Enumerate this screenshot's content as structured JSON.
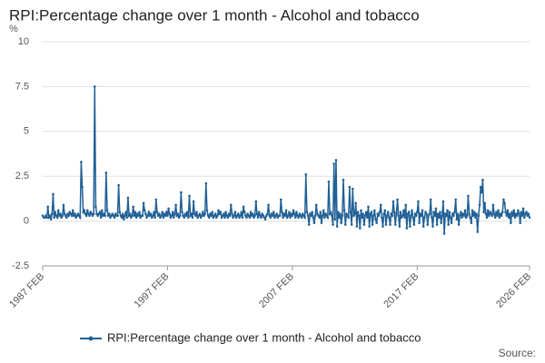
{
  "chart_data": {
    "type": "line",
    "title": "RPI:Percentage change over 1 month - Alcohol and tobacco",
    "y_label": "%",
    "source": "Source:",
    "color": "#206095",
    "grid": true,
    "legend": "bottom",
    "ylim": [
      -2.5,
      10
    ],
    "yticks": [
      -2.5,
      0,
      2.5,
      5,
      7.5,
      10
    ],
    "categories": [
      "1987 FEB",
      null,
      null,
      null,
      null,
      null,
      null,
      null,
      null,
      null,
      null,
      null,
      null,
      null,
      null,
      null,
      null,
      null,
      null,
      null,
      null,
      null,
      null,
      null,
      null,
      null,
      null,
      null,
      null,
      null,
      null,
      null,
      null,
      null,
      null,
      null,
      null,
      null,
      null,
      null,
      null,
      null,
      null,
      null,
      null,
      null,
      null,
      null,
      null,
      null,
      null,
      null,
      null,
      null,
      null,
      null,
      null,
      null,
      null,
      null,
      null,
      null,
      null,
      null,
      null,
      null,
      null,
      null,
      null,
      null,
      null,
      null,
      null,
      null,
      null,
      null,
      null,
      null,
      null,
      null,
      null,
      null,
      null,
      null,
      null,
      null,
      null,
      null,
      null,
      null,
      null,
      null,
      null,
      null,
      null,
      null,
      null,
      null,
      null,
      null,
      null,
      null,
      null,
      null,
      null,
      null,
      null,
      null,
      null,
      null,
      null,
      null,
      null,
      null,
      null,
      null,
      null,
      null,
      null,
      null,
      "1997 FEB",
      null,
      null,
      null,
      null,
      null,
      null,
      null,
      null,
      null,
      null,
      null,
      null,
      null,
      null,
      null,
      null,
      null,
      null,
      null,
      null,
      null,
      null,
      null,
      null,
      null,
      null,
      null,
      null,
      null,
      null,
      null,
      null,
      null,
      null,
      null,
      null,
      null,
      null,
      null,
      null,
      null,
      null,
      null,
      null,
      null,
      null,
      null,
      null,
      null,
      null,
      null,
      null,
      null,
      null,
      null,
      null,
      null,
      null,
      null,
      null,
      null,
      null,
      null,
      null,
      null,
      null,
      null,
      null,
      null,
      null,
      null,
      null,
      null,
      null,
      null,
      null,
      null,
      null,
      null,
      null,
      null,
      null,
      null,
      null,
      null,
      null,
      null,
      null,
      null,
      null,
      null,
      null,
      null,
      null,
      null,
      null,
      null,
      null,
      null,
      null,
      null,
      null,
      null,
      null,
      null,
      null,
      null,
      null,
      null,
      null,
      null,
      null,
      null,
      null,
      null,
      null,
      null,
      null,
      null,
      "2007 FEB",
      null,
      null,
      null,
      null,
      null,
      null,
      null,
      null,
      null,
      null,
      null,
      null,
      null,
      null,
      null,
      null,
      null,
      null,
      null,
      null,
      null,
      null,
      null,
      null,
      null,
      null,
      null,
      null,
      null,
      null,
      null,
      null,
      null,
      null,
      null,
      null,
      null,
      null,
      null,
      null,
      null,
      null,
      null,
      null,
      null,
      null,
      null,
      null,
      null,
      null,
      null,
      null,
      null,
      null,
      null,
      null,
      null,
      null,
      null,
      null,
      null,
      null,
      null,
      null,
      null,
      null,
      null,
      null,
      null,
      null,
      null,
      null,
      null,
      null,
      null,
      null,
      null,
      null,
      null,
      null,
      null,
      null,
      null,
      null,
      null,
      null,
      null,
      null,
      null,
      null,
      null,
      null,
      null,
      null,
      null,
      null,
      null,
      null,
      null,
      null,
      null,
      null,
      null,
      null,
      null,
      null,
      null,
      null,
      null,
      null,
      null,
      null,
      null,
      null,
      null,
      null,
      null,
      null,
      null,
      "2017 FEB",
      null,
      null,
      null,
      null,
      null,
      null,
      null,
      null,
      null,
      null,
      null,
      null,
      null,
      null,
      null,
      null,
      null,
      null,
      null,
      null,
      null,
      null,
      null,
      null,
      null,
      null,
      null,
      null,
      null,
      null,
      null,
      null,
      null,
      null,
      null,
      null,
      null,
      null,
      null,
      null,
      null,
      null,
      null,
      null,
      null,
      null,
      null,
      null,
      null,
      null,
      null,
      null,
      null,
      null,
      null,
      null,
      null,
      null,
      null,
      null,
      null,
      null,
      null,
      null,
      null,
      null,
      null,
      null,
      null,
      null,
      null,
      null,
      null,
      null,
      null,
      null,
      null,
      null,
      null,
      null,
      null,
      null,
      null,
      null,
      null,
      null,
      null,
      null,
      null,
      null,
      null,
      null,
      null,
      null,
      null,
      null,
      null,
      null,
      null,
      null,
      null,
      null,
      null,
      null,
      null,
      null,
      null,
      "2026 FEB"
    ],
    "series": [
      {
        "name": "RPI:Percentage change over 1 month - Alcohol and tobacco",
        "color": "#206095",
        "values": [
          0.3,
          0.2,
          0.2,
          0.3,
          0.2,
          0.8,
          0.2,
          0.3,
          0.1,
          0.4,
          1.5,
          0.2,
          0.5,
          0.3,
          0.2,
          0.6,
          0.3,
          0.4,
          0.2,
          0.3,
          0.9,
          0.4,
          0.3,
          0.2,
          0.4,
          0.3,
          0.5,
          0.4,
          0.3,
          0.6,
          0.3,
          0.4,
          0.2,
          0.3,
          0.4,
          0.3,
          0.2,
          3.3,
          1.9,
          0.5,
          0.6,
          0.4,
          0.3,
          0.6,
          0.4,
          0.3,
          0.5,
          0.4,
          0.3,
          0.4,
          7.5,
          0.8,
          0.4,
          0.3,
          0.4,
          0.5,
          0.2,
          0.6,
          0.3,
          0.4,
          0.3,
          2.7,
          0.6,
          0.3,
          0.4,
          0.2,
          0.3,
          0.4,
          0.3,
          0.2,
          0.4,
          0.3,
          0.3,
          2.0,
          0.5,
          0.3,
          0.2,
          0.4,
          0.1,
          0.3,
          0.5,
          0.2,
          1.3,
          0.3,
          0.4,
          0.2,
          0.3,
          0.8,
          0.3,
          0.5,
          0.2,
          0.4,
          0.3,
          0.5,
          0.2,
          0.3,
          0.3,
          1.0,
          0.6,
          0.4,
          0.2,
          0.3,
          0.5,
          0.3,
          0.4,
          0.2,
          0.3,
          0.5,
          0.2,
          1.2,
          0.5,
          0.3,
          0.4,
          0.2,
          0.3,
          0.5,
          0.2,
          0.4,
          0.3,
          0.5,
          0.3,
          0.7,
          0.4,
          0.2,
          0.3,
          0.5,
          0.2,
          0.4,
          0.9,
          0.3,
          0.4,
          0.2,
          0.3,
          1.6,
          0.5,
          0.3,
          0.2,
          0.4,
          0.3,
          0.5,
          0.2,
          1.4,
          0.3,
          0.4,
          0.2,
          1.1,
          0.4,
          0.3,
          0.5,
          0.2,
          0.3,
          0.4,
          0.2,
          0.3,
          0.5,
          0.3,
          0.4,
          2.1,
          0.6,
          0.3,
          0.2,
          0.4,
          0.3,
          0.5,
          0.2,
          0.3,
          0.4,
          0.2,
          0.3,
          0.6,
          0.4,
          0.5,
          0.2,
          0.3,
          0.4,
          0.2,
          0.5,
          0.3,
          0.2,
          0.4,
          0.3,
          0.9,
          0.4,
          0.2,
          0.3,
          0.5,
          0.2,
          0.3,
          0.4,
          0.2,
          0.3,
          0.5,
          0.2,
          0.8,
          0.5,
          0.3,
          0.2,
          0.4,
          0.3,
          0.2,
          0.5,
          0.3,
          0.4,
          0.2,
          0.3,
          1.1,
          0.4,
          0.2,
          0.5,
          0.3,
          0.2,
          0.4,
          0.3,
          0.2,
          0.1,
          0.3,
          0.4,
          0.9,
          0.3,
          0.2,
          0.4,
          0.3,
          0.5,
          0.2,
          0.3,
          0.4,
          0.2,
          0.3,
          0.3,
          1.2,
          0.5,
          0.2,
          0.4,
          0.3,
          0.6,
          0.2,
          0.3,
          0.5,
          0.2,
          0.4,
          0.3,
          0.6,
          0.4,
          0.2,
          0.5,
          0.3,
          0.2,
          0.4,
          0.3,
          0.2,
          0.4,
          0.3,
          0.2,
          2.6,
          0.5,
          0.3,
          -0.2,
          0.4,
          0.3,
          0.5,
          0.2,
          -0.1,
          0.3,
          0.9,
          0.4,
          0.3,
          0.2,
          0.5,
          -0.1,
          0.3,
          0.6,
          0.2,
          0.4,
          0.3,
          0.2,
          2.2,
          0.4,
          0.5,
          0.3,
          -0.2,
          3.2,
          0.1,
          3.4,
          -0.3,
          0.5,
          0.2,
          0.4,
          -0.1,
          0.3,
          2.3,
          0.6,
          -0.2,
          0.4,
          0.3,
          0.2,
          1.9,
          0.5,
          -0.2,
          1.8,
          0.3,
          0.4,
          1.0,
          -0.3,
          0.5,
          0.3,
          -0.4,
          0.6,
          0.2,
          0.4,
          -0.2,
          0.3,
          0.5,
          0.2,
          0.8,
          -0.3,
          0.4,
          0.5,
          -0.2,
          0.3,
          0.6,
          0.1,
          -0.1,
          0.4,
          0.3,
          0.5,
          0.9,
          0.2,
          -0.3,
          0.4,
          0.6,
          -0.2,
          0.3,
          0.5,
          0.2,
          -0.2,
          0.4,
          0.3,
          1.1,
          0.5,
          -0.2,
          0.4,
          1.2,
          0.3,
          -0.3,
          0.5,
          0.2,
          0.3,
          0.6,
          0.2,
          0.9,
          -0.4,
          0.4,
          0.5,
          -0.3,
          0.3,
          0.6,
          0.2,
          -0.2,
          0.4,
          0.3,
          0.5,
          1.1,
          -0.1,
          0.4,
          0.3,
          0.6,
          -0.3,
          0.2,
          0.5,
          0.4,
          -0.2,
          0.3,
          0.4,
          1.2,
          0.2,
          -0.3,
          0.5,
          0.3,
          0.7,
          -0.2,
          0.4,
          0.2,
          0.5,
          -0.1,
          0.3,
          1.1,
          -0.7,
          0.4,
          0.3,
          0.6,
          -0.2,
          0.5,
          0.2,
          -0.1,
          0.4,
          0.3,
          0.5,
          1.2,
          0.1,
          0.4,
          -0.2,
          0.3,
          0.5,
          0.2,
          0.4,
          0.3,
          0.6,
          0.2,
          0.3,
          1.4,
          0.4,
          0.2,
          -0.1,
          0.6,
          0.3,
          0.5,
          0.2,
          0.4,
          -0.6,
          0.3,
          0.9,
          1.9,
          1.6,
          2.3,
          0.5,
          1.0,
          0.4,
          0.2,
          0.6,
          0.3,
          0.5,
          0.4,
          0.3,
          0.9,
          0.4,
          0.2,
          0.5,
          0.3,
          0.6,
          0.2,
          0.4,
          0.3,
          0.5,
          1.2,
          1.0,
          0.5,
          0.3,
          0.6,
          0.2,
          0.4,
          -0.1,
          0.5,
          0.3,
          0.6,
          0.2,
          0.4,
          0.3,
          0.6,
          0.4,
          -0.1,
          0.5,
          0.3,
          0.7,
          0.2,
          0.4,
          0.5,
          0.3,
          0.4,
          0.2
        ]
      }
    ]
  }
}
